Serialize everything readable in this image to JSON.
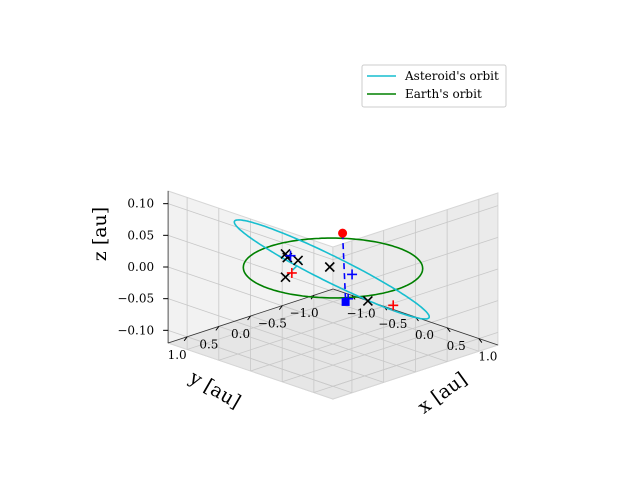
{
  "chart_data": {
    "type": "line3d",
    "title": "",
    "xlabel": "$x$ [au]",
    "ylabel": "$y$ [au]",
    "zlabel": "$z$ [au]",
    "xlabel_text": "x [au]",
    "ylabel_text": "y [au]",
    "zlabel_text": "z [au]",
    "xlim": [
      -1.3,
      1.3
    ],
    "ylim": [
      -1.3,
      1.3
    ],
    "zlim": [
      -0.12,
      0.12
    ],
    "x_ticks": [
      {
        "v": -1.0,
        "label": "−1.0"
      },
      {
        "v": -0.5,
        "label": "−0.5"
      },
      {
        "v": 0.0,
        "label": "0.0"
      },
      {
        "v": 0.5,
        "label": "0.5"
      },
      {
        "v": 1.0,
        "label": "1.0"
      }
    ],
    "y_ticks": [
      {
        "v": -1.0,
        "label": "−1.0"
      },
      {
        "v": -0.5,
        "label": "−0.5"
      },
      {
        "v": 0.0,
        "label": "0.0"
      },
      {
        "v": 0.5,
        "label": "0.5"
      },
      {
        "v": 1.0,
        "label": "1.0"
      }
    ],
    "z_ticks": [
      {
        "v": -0.1,
        "label": "−0.10"
      },
      {
        "v": -0.05,
        "label": "−0.05"
      },
      {
        "v": 0.0,
        "label": "0.00"
      },
      {
        "v": 0.05,
        "label": "0.05"
      },
      {
        "v": 0.1,
        "label": "0.10"
      }
    ],
    "grid": true,
    "legend_position": "top-right",
    "legend": [
      {
        "label": "Asteroid's orbit",
        "color": "#17becf"
      },
      {
        "label": "Earth's orbit",
        "color": "#008000"
      }
    ],
    "orbits": {
      "earth": {
        "a": 1.0,
        "e": 0.0,
        "inclination_deg": 0.0,
        "color": "#008000"
      },
      "asteroid": {
        "a": 1.1,
        "e": 0.14,
        "inclination_deg": 5.5,
        "node_deg": 0,
        "perihelion_arg_deg": 40,
        "color": "#17becf"
      }
    },
    "dashed_lines": [
      {
        "name": "asteroid-node-line",
        "color": "#17becf",
        "from": [
          -1.05,
          -0.3,
          -0.06
        ],
        "to": [
          0.5,
          1.0,
          0.06
        ]
      },
      {
        "name": "earth-node-line",
        "color": "#0000ff",
        "from": [
          -0.75,
          -0.9,
          0.0
        ],
        "to": [
          0.9,
          0.7,
          0.0
        ]
      }
    ],
    "markers": [
      {
        "name": "sun-position",
        "symbol": "circle",
        "color": "#ff0000",
        "pos": [
          -0.75,
          -0.9,
          0.0
        ]
      },
      {
        "name": "earth-position",
        "symbol": "square",
        "color": "#0000ff",
        "pos": [
          0.9,
          0.7,
          0.0
        ]
      },
      {
        "name": "cross-a",
        "symbol": "x",
        "color": "#000000",
        "pos": [
          0.45,
          1.0,
          0.06
        ]
      },
      {
        "name": "cross-b",
        "symbol": "x",
        "color": "#000000",
        "pos": [
          0.85,
          0.9,
          0.06
        ]
      },
      {
        "name": "cross-c",
        "symbol": "x",
        "color": "#000000",
        "pos": [
          -0.7,
          0.05,
          0.0
        ]
      },
      {
        "name": "cross-d",
        "symbol": "x",
        "color": "#000000",
        "pos": [
          -0.6,
          0.12,
          0.0
        ]
      },
      {
        "name": "cross-e",
        "symbol": "x",
        "color": "#000000",
        "pos": [
          0.3,
          -0.25,
          -0.05
        ]
      },
      {
        "name": "cross-f",
        "symbol": "x",
        "color": "#000000",
        "pos": [
          -1.05,
          -0.3,
          -0.06
        ]
      },
      {
        "name": "plus-blue-a",
        "symbol": "plus",
        "color": "#0000ff",
        "pos": [
          -0.47,
          0.2,
          0.01
        ]
      },
      {
        "name": "plus-blue-b",
        "symbol": "plus",
        "color": "#0000ff",
        "pos": [
          -0.3,
          -0.6,
          -0.04
        ]
      },
      {
        "name": "plus-blue-c",
        "symbol": "plus",
        "color": "#0000ff",
        "pos": [
          0.92,
          0.68,
          0.005
        ]
      },
      {
        "name": "plus-red-a",
        "symbol": "plus",
        "color": "#ff0000",
        "pos": [
          0.9,
          -0.05,
          -0.03
        ]
      },
      {
        "name": "plus-red-b",
        "symbol": "plus",
        "color": "#ff0000",
        "pos": [
          -1.1,
          -0.45,
          -0.06
        ]
      }
    ]
  }
}
